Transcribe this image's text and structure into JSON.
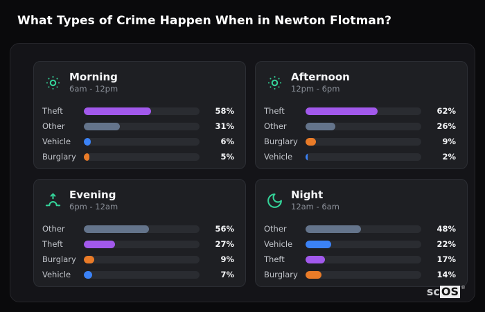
{
  "page": {
    "title": "What Types of Crime Happen When in Newton Flotman?"
  },
  "watermark": {
    "prefix": "sc",
    "brand": "OS",
    "registered": "®"
  },
  "colors": {
    "icon_accent": "#34d399",
    "bar_track": "#2a2c31",
    "crime_colors": {
      "Theft": "#a259ec",
      "Other": "#64748b",
      "Vehicle": "#3b82f6",
      "Burglary": "#e97b28"
    }
  },
  "chart_data": [
    {
      "type": "bar",
      "orientation": "horizontal",
      "title": "Morning",
      "subtitle": "6am - 12pm",
      "icon": "sun",
      "categories": [
        "Theft",
        "Other",
        "Vehicle",
        "Burglary"
      ],
      "values": [
        58,
        31,
        6,
        5
      ],
      "unit": "%",
      "xlim": [
        0,
        100
      ],
      "grid": false,
      "legend": false
    },
    {
      "type": "bar",
      "orientation": "horizontal",
      "title": "Afternoon",
      "subtitle": "12pm - 6pm",
      "icon": "sun",
      "categories": [
        "Theft",
        "Other",
        "Burglary",
        "Vehicle"
      ],
      "values": [
        62,
        26,
        9,
        2
      ],
      "unit": "%",
      "xlim": [
        0,
        100
      ],
      "grid": false,
      "legend": false
    },
    {
      "type": "bar",
      "orientation": "horizontal",
      "title": "Evening",
      "subtitle": "6pm - 12am",
      "icon": "sunrise",
      "categories": [
        "Other",
        "Theft",
        "Burglary",
        "Vehicle"
      ],
      "values": [
        56,
        27,
        9,
        7
      ],
      "unit": "%",
      "xlim": [
        0,
        100
      ],
      "grid": false,
      "legend": false
    },
    {
      "type": "bar",
      "orientation": "horizontal",
      "title": "Night",
      "subtitle": "12am - 6am",
      "icon": "moon",
      "categories": [
        "Other",
        "Vehicle",
        "Theft",
        "Burglary"
      ],
      "values": [
        48,
        22,
        17,
        14
      ],
      "unit": "%",
      "xlim": [
        0,
        100
      ],
      "grid": false,
      "legend": false
    }
  ]
}
